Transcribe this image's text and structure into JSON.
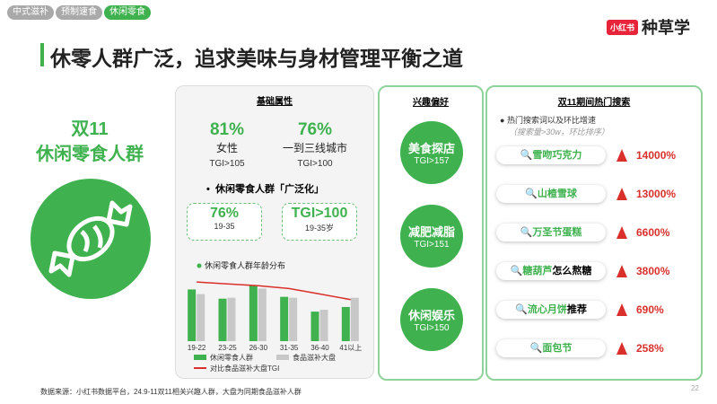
{
  "tabs": [
    "中式滋补",
    "预制速食",
    "休闲零食"
  ],
  "logo": {
    "badge": "小红书",
    "name": "种草学"
  },
  "title": "休零人群广泛，追求美味与身材管理平衡之道",
  "left": {
    "line1": "双11",
    "line2": "休闲零食人群"
  },
  "basic": {
    "header": "基础属性",
    "stats": [
      {
        "value": "81%",
        "label": "女性",
        "tgi": "TGI>105"
      },
      {
        "value": "76%",
        "label": "一到三线城市",
        "tgi": "TGI>100"
      }
    ],
    "bullet": "休闲零食人群「广泛化」",
    "bubbles": [
      {
        "value": "76%",
        "label": "19-35"
      },
      {
        "value": "TGI>100",
        "label": "19-35岁"
      }
    ]
  },
  "interest": {
    "header": "兴趣偏好",
    "items": [
      {
        "name": "美食探店",
        "tgi": "TGI>157"
      },
      {
        "name": "减肥减脂",
        "tgi": "TGI>151"
      },
      {
        "name": "休闲娱乐",
        "tgi": "TGI>150"
      }
    ]
  },
  "search": {
    "header": "双11期间热门搜索",
    "bullet": "热门搜索词以及环比增速",
    "note": "（搜索量>30w，环比排序）",
    "items": [
      {
        "term": "雪吻巧克力",
        "growth": "14000%"
      },
      {
        "term": "山楂雪球",
        "growth": "13000%"
      },
      {
        "term": "万圣节蛋糕",
        "growth": "6600%"
      },
      {
        "term": "糖葫芦",
        "rest": "怎么熬糖",
        "growth": "3800%"
      },
      {
        "term": "流心月饼",
        "rest": "推荐",
        "growth": "690%"
      },
      {
        "term": "面包节",
        "growth": "258%"
      }
    ]
  },
  "footer": "数据来源：小红书数据平台，24.9-11双11相关兴趣人群，大盘为同期食品滋补人群",
  "page_number": "22",
  "chart_data": {
    "type": "bar",
    "title": "休闲零食人群年龄分布",
    "categories": [
      "19-22",
      "23-25",
      "26-30",
      "31-35",
      "36-40",
      "41以上"
    ],
    "ylim": [
      0,
      70
    ],
    "series": [
      {
        "name": "休闲零食人群",
        "color": "#3fb24f",
        "values": [
          56,
          46,
          60,
          48,
          32,
          37
        ]
      },
      {
        "name": "食品滋补大盘",
        "color": "#c8c8c8",
        "values": [
          51,
          47,
          57,
          47,
          34,
          47
        ]
      },
      {
        "name": "对比食品滋补大盘TGI",
        "color": "#d9302c",
        "type": "line",
        "values": [
          64,
          62,
          60,
          57,
          51,
          45
        ]
      }
    ]
  }
}
